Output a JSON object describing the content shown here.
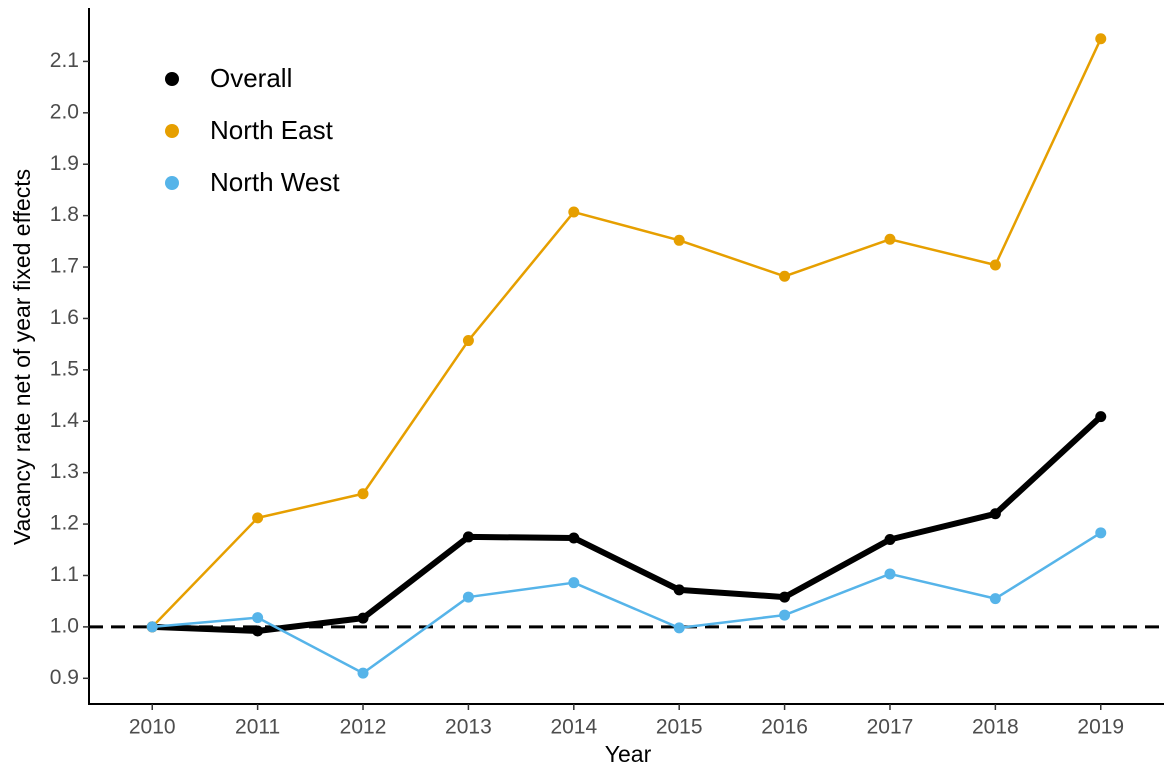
{
  "chart_data": {
    "type": "line",
    "x_label": "Year",
    "y_label": "Vacancy rate net of year fixed effects",
    "x": [
      2010,
      2011,
      2012,
      2013,
      2014,
      2015,
      2016,
      2017,
      2018,
      2019
    ],
    "series": [
      {
        "name": "Overall",
        "color": "#000000",
        "linewidth": 6,
        "values": [
          1.0,
          0.992,
          1.017,
          1.175,
          1.173,
          1.072,
          1.058,
          1.17,
          1.22,
          1.409
        ]
      },
      {
        "name": "North East",
        "color": "#E69F00",
        "linewidth": 2.5,
        "values": [
          1.0,
          1.212,
          1.259,
          1.557,
          1.807,
          1.752,
          1.682,
          1.754,
          1.704,
          2.144
        ]
      },
      {
        "name": "North West",
        "color": "#56B4E9",
        "linewidth": 2.5,
        "values": [
          1.0,
          1.018,
          0.91,
          1.058,
          1.086,
          0.998,
          1.023,
          1.103,
          1.055,
          1.183
        ]
      }
    ],
    "xlim": [
      2009.4,
      2019.6
    ],
    "xticks": [
      2010,
      2011,
      2012,
      2013,
      2014,
      2015,
      2016,
      2017,
      2018,
      2019
    ],
    "ylim": [
      0.85,
      2.2
    ],
    "yticks": [
      0.9,
      {
        "value": 1,
        "label": "1.0"
      },
      1.1,
      1.2,
      1.3,
      1.4,
      1.5,
      1.6,
      1.7,
      1.8,
      1.9,
      {
        "value": 2,
        "label": "2.0"
      },
      2.1
    ],
    "reference_line": 1,
    "legend_position": "top-left",
    "grid": false
  }
}
